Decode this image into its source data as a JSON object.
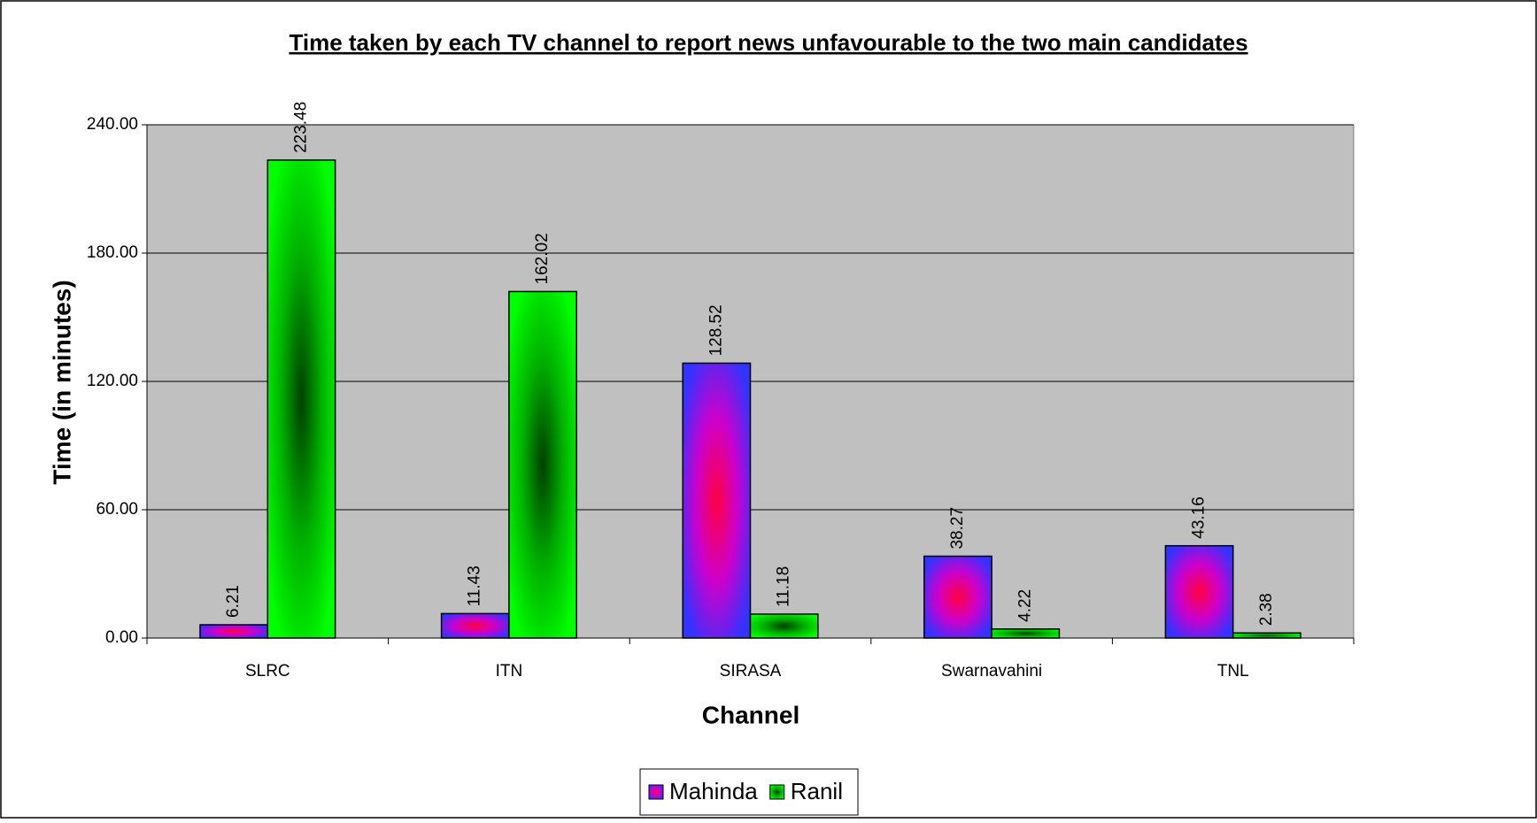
{
  "chart_data": {
    "type": "bar",
    "title": "Time taken by each TV channel to report news unfavourable to the two main candidates",
    "x_label": "Channel",
    "y_label": "Time (in minutes)",
    "categories": [
      "SLRC",
      "ITN",
      "SIRASA",
      "Swarnavahini",
      "TNL"
    ],
    "series": [
      {
        "name": "Mahinda",
        "color": "#3333ff",
        "values": [
          6.21,
          11.43,
          128.52,
          38.27,
          43.16
        ]
      },
      {
        "name": "Ranil",
        "color": "#00ff00",
        "values": [
          223.48,
          162.02,
          11.18,
          4.22,
          2.38
        ]
      }
    ],
    "ylim": [
      0,
      240
    ],
    "yticks": [
      {
        "value": 0,
        "label": "0.00"
      },
      {
        "value": 60,
        "label": "60.00"
      },
      {
        "value": 120,
        "label": "120.00"
      },
      {
        "value": 180,
        "label": "180.00"
      },
      {
        "value": 240,
        "label": "240.00"
      }
    ],
    "grid": true,
    "legend": "bottom"
  }
}
